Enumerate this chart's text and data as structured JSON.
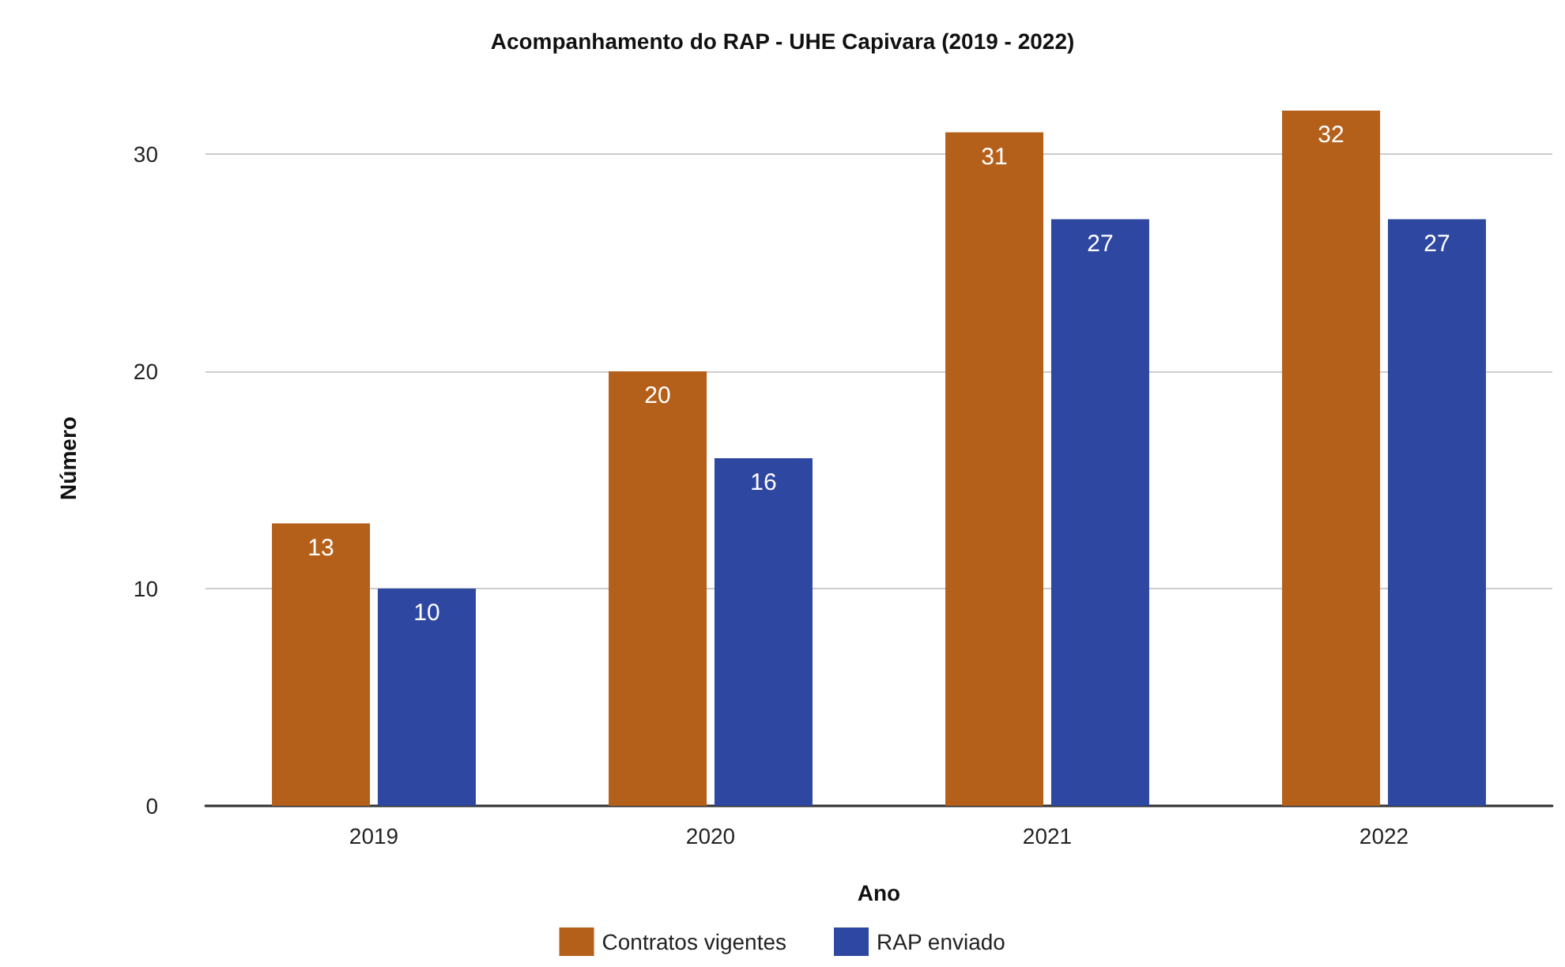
{
  "chart_data": {
    "type": "bar",
    "title": "Acompanhamento do RAP - UHE Capivara (2019 - 2022)",
    "xlabel": "Ano",
    "ylabel": "Número",
    "categories": [
      "2019",
      "2020",
      "2021",
      "2022"
    ],
    "series": [
      {
        "name": "Contratos vigentes",
        "color": "#b5601a",
        "values": [
          13,
          20,
          31,
          32
        ]
      },
      {
        "name": "RAP enviado",
        "color": "#2e47a0",
        "values": [
          10,
          16,
          27,
          27
        ]
      }
    ],
    "ylim": [
      0,
      32
    ],
    "yticks": [
      0,
      10,
      20,
      30
    ],
    "grid": "y",
    "legend": "bottom",
    "data_labels": true
  }
}
